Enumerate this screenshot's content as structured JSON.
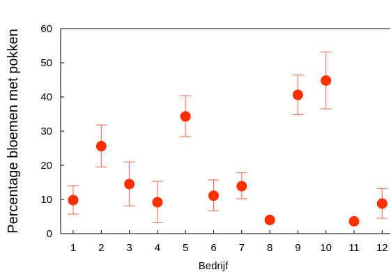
{
  "chart_data": {
    "type": "scatter",
    "title": "",
    "xlabel": "Bedrijf",
    "ylabel": "Percentage bloemen met pokken",
    "ylim": [
      0,
      60
    ],
    "yticks": [
      0,
      10,
      20,
      30,
      40,
      50,
      60
    ],
    "categories": [
      "1",
      "2",
      "3",
      "4",
      "5",
      "6",
      "7",
      "8",
      "9",
      "10",
      "11",
      "12"
    ],
    "values": [
      9.8,
      25.6,
      14.5,
      9.2,
      34.3,
      11.1,
      13.9,
      4.0,
      40.6,
      44.8,
      3.6,
      8.8
    ],
    "error_high": [
      14.0,
      31.8,
      21.0,
      15.3,
      40.3,
      15.7,
      17.8,
      null,
      46.4,
      53.2,
      null,
      13.2
    ],
    "error_low": [
      5.7,
      19.5,
      8.1,
      3.2,
      28.4,
      6.7,
      10.2,
      null,
      34.8,
      36.5,
      null,
      4.5
    ],
    "marker_color": "#ff3000",
    "error_color": "#ff6040",
    "grid": false
  }
}
